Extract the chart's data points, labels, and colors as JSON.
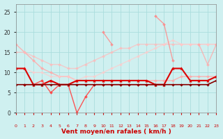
{
  "background_color": "#cff0f0",
  "grid_color": "#aadddd",
  "xlabel": "Vent moyen/en rafales ( km/h )",
  "ylim": [
    0,
    27
  ],
  "xlim": [
    0,
    23
  ],
  "yticks": [
    0,
    5,
    10,
    15,
    20,
    25
  ],
  "lines": [
    {
      "y": [
        17,
        15,
        13,
        11,
        10,
        9,
        9,
        8,
        8,
        8,
        8,
        8,
        8,
        8,
        8,
        8,
        8,
        8,
        8,
        9,
        9,
        9,
        9,
        9
      ],
      "color": "#ffaaaa",
      "alpha": 0.85,
      "lw": 1.0,
      "marker": "D",
      "ms": 2.0
    },
    {
      "y": [
        15,
        15,
        14,
        13,
        12,
        12,
        11,
        11,
        12,
        13,
        14,
        15,
        16,
        16,
        17,
        17,
        17,
        17,
        17,
        17,
        17,
        17,
        17,
        17
      ],
      "color": "#ffbbbb",
      "alpha": 0.7,
      "lw": 1.0,
      "marker": "D",
      "ms": 2.0
    },
    {
      "y": [
        11,
        11,
        10,
        10,
        9,
        9,
        9,
        8,
        9,
        9,
        10,
        11,
        12,
        13,
        14,
        15,
        16,
        17,
        18,
        17,
        17,
        17,
        17,
        17
      ],
      "color": "#ffcccc",
      "alpha": 0.7,
      "lw": 1.0,
      "marker": "D",
      "ms": 2.0
    },
    {
      "y": [
        null,
        null,
        null,
        null,
        null,
        null,
        null,
        null,
        null,
        null,
        20,
        17,
        null,
        null,
        null,
        null,
        null,
        null,
        null,
        null,
        null,
        null,
        null,
        null
      ],
      "color": "#ff8888",
      "alpha": 0.8,
      "lw": 1.0,
      "marker": "D",
      "ms": 2.0
    },
    {
      "y": [
        null,
        null,
        null,
        null,
        null,
        null,
        null,
        null,
        null,
        null,
        null,
        null,
        null,
        null,
        null,
        null,
        24,
        22,
        13,
        null,
        null,
        null,
        null,
        null
      ],
      "color": "#ff8888",
      "alpha": 0.8,
      "lw": 1.0,
      "marker": "D",
      "ms": 2.0
    },
    {
      "y": [
        null,
        null,
        null,
        null,
        null,
        null,
        null,
        null,
        null,
        null,
        null,
        null,
        null,
        null,
        null,
        null,
        null,
        null,
        null,
        null,
        null,
        17,
        12,
        17
      ],
      "color": "#ffaaaa",
      "alpha": 0.8,
      "lw": 1.0,
      "marker": "D",
      "ms": 2.0
    },
    {
      "y": [
        11,
        11,
        7,
        7,
        8,
        7,
        7,
        8,
        8,
        8,
        8,
        8,
        8,
        8,
        8,
        8,
        7,
        7,
        11,
        11,
        8,
        8,
        8,
        9
      ],
      "color": "#dd0000",
      "alpha": 1.0,
      "lw": 1.5,
      "marker": "^",
      "ms": 2.5
    },
    {
      "y": [
        null,
        7,
        7,
        8,
        5,
        7,
        7,
        0,
        4,
        7,
        7,
        7,
        7,
        7,
        7,
        7,
        7,
        7,
        null,
        null,
        null,
        null,
        null,
        null
      ],
      "color": "#ff4444",
      "alpha": 0.9,
      "lw": 1.0,
      "marker": "D",
      "ms": 2.0
    },
    {
      "y": [
        7,
        7,
        7,
        7,
        7,
        7,
        7,
        7,
        7,
        7,
        7,
        7,
        7,
        7,
        7,
        7,
        7,
        7,
        7,
        7,
        7,
        7,
        7,
        8
      ],
      "color": "#880000",
      "alpha": 1.0,
      "lw": 1.2,
      "marker": "D",
      "ms": 1.8
    }
  ],
  "wind_arrows": {
    "x": [
      0,
      1,
      2,
      3,
      4,
      5,
      6,
      7,
      8,
      9,
      10,
      11,
      12,
      13,
      14,
      15,
      16,
      17,
      18,
      19,
      20,
      21,
      22,
      23
    ],
    "color": "#cc0000"
  }
}
